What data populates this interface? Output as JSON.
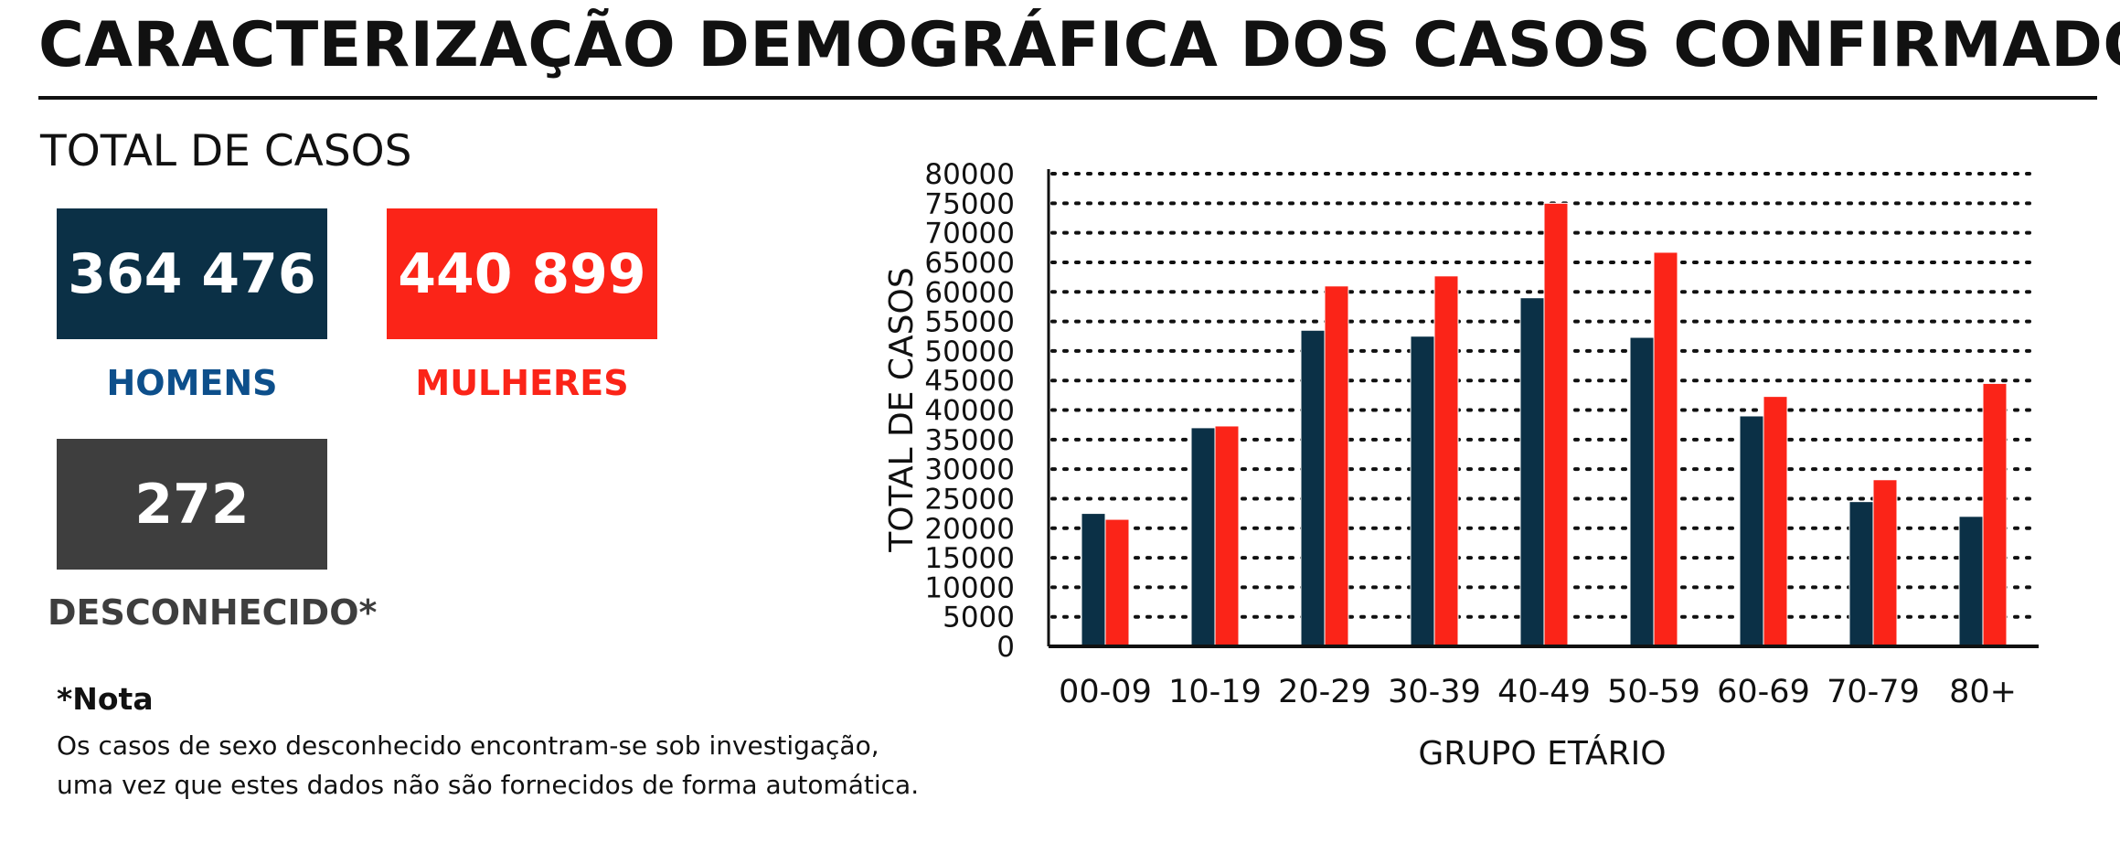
{
  "page": {
    "title": "CARACTERIZAÇÃO DEMOGRÁFICA DOS CASOS CONFIRMADOS",
    "total_label": "TOTAL DE CASOS"
  },
  "summary": {
    "men": {
      "value": "364 476",
      "label": "HOMENS",
      "color": "#0b3046"
    },
    "women": {
      "value": "440 899",
      "label": "MULHERES",
      "color": "#fb2418"
    },
    "unknown": {
      "value": "272",
      "label": "DESCONHECIDO*",
      "color": "#3e3e3e"
    },
    "men_label_color": "#0d4f8b"
  },
  "note": {
    "title": "*Nota",
    "line1": "Os casos de sexo desconhecido encontram-se sob investigação,",
    "line2": "uma vez que estes dados não são fornecidos de forma automática."
  },
  "chart_data": {
    "type": "bar",
    "categories": [
      "00-09",
      "10-19",
      "20-29",
      "30-39",
      "40-49",
      "50-59",
      "60-69",
      "70-79",
      "80+"
    ],
    "series": [
      {
        "color": "#0b3046",
        "values": [
          22500,
          37000,
          53500,
          52500,
          59000,
          52300,
          39000,
          24500,
          22000
        ]
      },
      {
        "color": "#fb2418",
        "values": [
          21500,
          37300,
          61000,
          62700,
          75000,
          66700,
          42300,
          28200,
          44500
        ]
      }
    ],
    "xlabel": "GRUPO ETÁRIO",
    "ylabel": "TOTAL DE CASOS",
    "ylim": [
      0,
      80000
    ],
    "yticks": [
      0,
      5000,
      10000,
      15000,
      20000,
      25000,
      30000,
      35000,
      40000,
      45000,
      50000,
      55000,
      60000,
      65000,
      70000,
      75000,
      80000
    ],
    "grid": "dotted-horizontal"
  }
}
